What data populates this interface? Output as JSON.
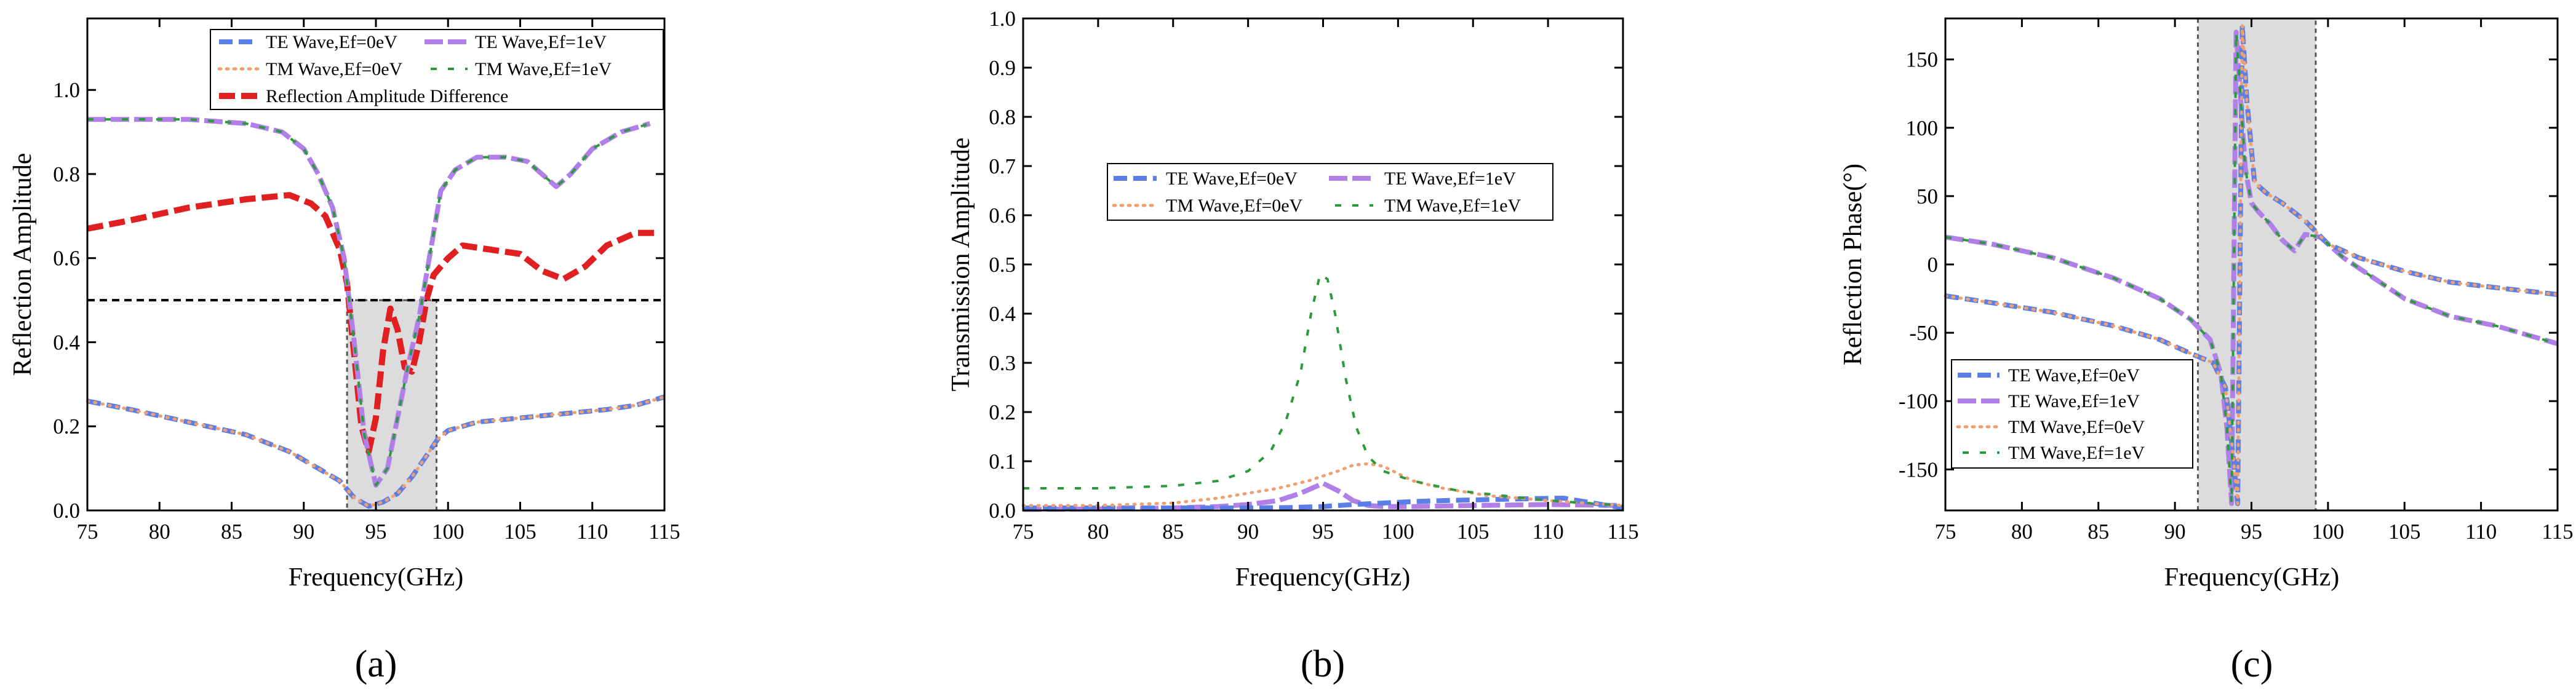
{
  "style": {
    "te0_color": "#5b7fe6",
    "te1_color": "#b080e8",
    "tm0_color": "#f0a070",
    "tm1_color": "#2a9a3a",
    "diff_color": "#e02020",
    "shade_color": "#dcdcdc"
  },
  "chart_data": [
    {
      "type": "line",
      "panel_label": "(a)",
      "xlabel": "Frequency(GHz)",
      "ylabel": "Reflection Amplitude",
      "xlim": [
        75,
        115
      ],
      "ylim": [
        0,
        1.17
      ],
      "xticks": [
        "75",
        "80",
        "85",
        "90",
        "95",
        "100",
        "105",
        "110",
        "115"
      ],
      "xtick_values": [
        75,
        80,
        85,
        90,
        95,
        100,
        105,
        110,
        115
      ],
      "yticks": [
        "0.0",
        "0.2",
        "0.4",
        "0.6",
        "0.8",
        "1.0"
      ],
      "ytick_values": [
        0,
        0.2,
        0.4,
        0.6,
        0.8,
        1.0
      ],
      "hline": 0.5,
      "shaded": {
        "x": [
          93,
          99.2
        ],
        "y": [
          0,
          0.5
        ]
      },
      "legend_position": "top-center",
      "legend_columns": 2,
      "series": [
        {
          "name": "TE Wave,Ef=0eV",
          "style": "te0",
          "x": [
            75,
            78,
            82,
            86,
            89,
            91,
            92.5,
            93.5,
            94.5,
            95.5,
            96.5,
            97.5,
            98.5,
            99.3,
            100,
            102,
            105,
            108,
            111,
            113,
            115
          ],
          "y": [
            0.26,
            0.24,
            0.21,
            0.18,
            0.14,
            0.1,
            0.07,
            0.03,
            0.01,
            0.02,
            0.04,
            0.08,
            0.13,
            0.17,
            0.19,
            0.21,
            0.22,
            0.23,
            0.24,
            0.25,
            0.27
          ]
        },
        {
          "name": "TE Wave,Ef=1eV",
          "style": "te1",
          "x": [
            75,
            78,
            82,
            86,
            88.5,
            90,
            91,
            92,
            92.8,
            93.5,
            94.2,
            95,
            95.8,
            96.5,
            97.2,
            98,
            98.8,
            99.5,
            100.5,
            102,
            104,
            105.5,
            106.5,
            107.5,
            108.5,
            110,
            112,
            114
          ],
          "y": [
            0.93,
            0.93,
            0.93,
            0.92,
            0.9,
            0.86,
            0.8,
            0.72,
            0.6,
            0.4,
            0.18,
            0.06,
            0.1,
            0.22,
            0.34,
            0.46,
            0.62,
            0.76,
            0.81,
            0.84,
            0.84,
            0.83,
            0.8,
            0.77,
            0.8,
            0.86,
            0.9,
            0.92
          ]
        },
        {
          "name": "TM Wave,Ef=0eV",
          "style": "tm0",
          "x": [
            75,
            78,
            82,
            86,
            89,
            91,
            92.5,
            93.5,
            94.5,
            95.5,
            96.5,
            97.5,
            98.5,
            99.3,
            100,
            102,
            105,
            108,
            111,
            113,
            115
          ],
          "y": [
            0.26,
            0.24,
            0.21,
            0.18,
            0.14,
            0.1,
            0.07,
            0.03,
            0.01,
            0.02,
            0.04,
            0.08,
            0.13,
            0.17,
            0.19,
            0.21,
            0.22,
            0.23,
            0.24,
            0.25,
            0.27
          ]
        },
        {
          "name": "TM Wave,Ef=1eV",
          "style": "tm1",
          "x": [
            75,
            78,
            82,
            86,
            88.5,
            90,
            91,
            92,
            92.8,
            93.5,
            94.2,
            95,
            95.8,
            96.5,
            97.2,
            98,
            98.8,
            99.5,
            100.5,
            102,
            104,
            105.5,
            106.5,
            107.5,
            108.5,
            110,
            112,
            114
          ],
          "y": [
            0.93,
            0.93,
            0.93,
            0.92,
            0.9,
            0.86,
            0.8,
            0.72,
            0.6,
            0.4,
            0.18,
            0.06,
            0.1,
            0.22,
            0.34,
            0.46,
            0.62,
            0.76,
            0.81,
            0.84,
            0.84,
            0.83,
            0.8,
            0.77,
            0.8,
            0.86,
            0.9,
            0.92
          ]
        },
        {
          "name": "Reflection Amplitude Difference",
          "style": "diff",
          "x": [
            75,
            78,
            82,
            86,
            89,
            90.5,
            91.5,
            92.5,
            93,
            93.5,
            94,
            94.5,
            95,
            95.5,
            96,
            96.5,
            97,
            97.5,
            98,
            98.5,
            99,
            99.5,
            100,
            101,
            103,
            105,
            106.5,
            108,
            109.5,
            111,
            113,
            114.5
          ],
          "y": [
            0.67,
            0.69,
            0.72,
            0.74,
            0.75,
            0.73,
            0.7,
            0.62,
            0.54,
            0.37,
            0.2,
            0.14,
            0.22,
            0.38,
            0.48,
            0.43,
            0.34,
            0.33,
            0.4,
            0.5,
            0.56,
            0.58,
            0.6,
            0.63,
            0.62,
            0.61,
            0.57,
            0.55,
            0.58,
            0.63,
            0.66,
            0.66
          ]
        }
      ],
      "legend_entries": [
        "TE Wave,Ef=0eV",
        "TE Wave,Ef=1eV",
        "TM Wave,Ef=0eV",
        "TM Wave,Ef=1eV",
        "Reflection Amplitude Difference"
      ]
    },
    {
      "type": "line",
      "panel_label": "(b)",
      "xlabel": "Frequency(GHz)",
      "ylabel": "Transmission Amplitude",
      "xlim": [
        75,
        115
      ],
      "ylim": [
        0,
        1.0
      ],
      "xticks": [
        "75",
        "80",
        "85",
        "90",
        "95",
        "100",
        "105",
        "110",
        "115"
      ],
      "xtick_values": [
        75,
        80,
        85,
        90,
        95,
        100,
        105,
        110,
        115
      ],
      "yticks": [
        "0.0",
        "0.1",
        "0.2",
        "0.3",
        "0.4",
        "0.5",
        "0.6",
        "0.7",
        "0.8",
        "0.9",
        "1.0"
      ],
      "ytick_values": [
        0,
        0.1,
        0.2,
        0.3,
        0.4,
        0.5,
        0.6,
        0.7,
        0.8,
        0.9,
        1.0
      ],
      "legend_position": "center",
      "legend_columns": 2,
      "series": [
        {
          "name": "TE Wave,Ef=0eV",
          "style": "te0",
          "x": [
            75,
            80,
            85,
            90,
            93,
            95,
            97,
            99,
            101,
            103,
            106,
            109,
            111,
            113,
            115
          ],
          "y": [
            0.005,
            0.005,
            0.005,
            0.005,
            0.006,
            0.008,
            0.012,
            0.015,
            0.018,
            0.02,
            0.022,
            0.024,
            0.025,
            0.015,
            0.005
          ]
        },
        {
          "name": "TE Wave,Ef=1eV",
          "style": "te1",
          "x": [
            75,
            80,
            85,
            88,
            90,
            92,
            93.5,
            95,
            96,
            97,
            98,
            99,
            101,
            105,
            110,
            115
          ],
          "y": [
            0.002,
            0.003,
            0.005,
            0.008,
            0.012,
            0.02,
            0.035,
            0.055,
            0.04,
            0.02,
            0.01,
            0.008,
            0.008,
            0.01,
            0.012,
            0.01
          ]
        },
        {
          "name": "TM Wave,Ef=0eV",
          "style": "tm0",
          "x": [
            75,
            80,
            85,
            88,
            90,
            92,
            94,
            96,
            97,
            98,
            99,
            100,
            101,
            103,
            106,
            110,
            115
          ],
          "y": [
            0.01,
            0.01,
            0.015,
            0.025,
            0.035,
            0.045,
            0.06,
            0.08,
            0.092,
            0.095,
            0.09,
            0.075,
            0.06,
            0.045,
            0.03,
            0.02,
            0.01
          ]
        },
        {
          "name": "TM Wave,Ef=1eV",
          "style": "tm1",
          "x": [
            75,
            80,
            85,
            88,
            90,
            91.5,
            92.5,
            93.5,
            94.2,
            94.8,
            95.3,
            95.8,
            96.5,
            97.2,
            98,
            99,
            101,
            104,
            107,
            110,
            115
          ],
          "y": [
            0.045,
            0.045,
            0.05,
            0.06,
            0.08,
            0.12,
            0.18,
            0.28,
            0.4,
            0.48,
            0.47,
            0.4,
            0.27,
            0.17,
            0.11,
            0.08,
            0.06,
            0.04,
            0.03,
            0.02,
            0.01
          ]
        }
      ],
      "legend_entries": [
        "TE Wave,Ef=0eV",
        "TE Wave,Ef=1eV",
        "TM Wave,Ef=0eV",
        "TM Wave,Ef=1eV"
      ]
    },
    {
      "type": "line",
      "panel_label": "(c)",
      "xlabel": "Frequency(GHz)",
      "ylabel": "Reflection Phase(°)",
      "xlim": [
        75,
        115
      ],
      "ylim": [
        -180,
        180
      ],
      "xticks": [
        "75",
        "80",
        "85",
        "90",
        "95",
        "100",
        "105",
        "110",
        "115"
      ],
      "xtick_values": [
        75,
        80,
        85,
        90,
        95,
        100,
        105,
        110,
        115
      ],
      "yticks": [
        "-150",
        "-100",
        "-50",
        "0",
        "50",
        "100",
        "150"
      ],
      "ytick_values": [
        -150,
        -100,
        -50,
        0,
        50,
        100,
        150
      ],
      "shaded": {
        "x": [
          91.5,
          99.2
        ],
        "y": [
          -180,
          180
        ]
      },
      "legend_position": "bottom-left",
      "legend_columns": 1,
      "series": [
        {
          "name": "TE Wave,Ef=0eV",
          "style": "te0",
          "x": [
            75,
            78,
            82,
            86,
            89,
            91,
            92.5,
            93.3,
            93.8,
            94.1,
            94.4,
            94.7,
            95.2,
            96,
            97,
            98.5,
            100,
            102,
            105,
            108,
            111,
            115
          ],
          "y": [
            -23,
            -28,
            -35,
            -45,
            -55,
            -65,
            -72,
            -90,
            -140,
            -175,
            175,
            120,
            60,
            52,
            45,
            32,
            15,
            5,
            -5,
            -13,
            -17,
            -22
          ]
        },
        {
          "name": "TE Wave,Ef=1eV",
          "style": "te1",
          "x": [
            75,
            78,
            82,
            86,
            89,
            91,
            92.3,
            93,
            93.4,
            93.7,
            94,
            94.3,
            94.6,
            95,
            95.5,
            96.2,
            97,
            97.8,
            98.5,
            99.5,
            101,
            103,
            105,
            108,
            111,
            115
          ],
          "y": [
            20,
            15,
            5,
            -10,
            -25,
            -40,
            -55,
            -80,
            -120,
            -175,
            170,
            120,
            70,
            45,
            38,
            30,
            18,
            10,
            22,
            20,
            5,
            -10,
            -25,
            -38,
            -45,
            -58
          ]
        },
        {
          "name": "TM Wave,Ef=0eV",
          "style": "tm0",
          "x": [
            75,
            78,
            82,
            86,
            89,
            91,
            92.5,
            93.3,
            93.8,
            94.1,
            94.4,
            94.7,
            95.2,
            96,
            97,
            98.5,
            100,
            102,
            105,
            108,
            111,
            115
          ],
          "y": [
            -23,
            -28,
            -35,
            -45,
            -55,
            -65,
            -72,
            -90,
            -140,
            -175,
            175,
            120,
            60,
            52,
            45,
            32,
            15,
            5,
            -5,
            -13,
            -17,
            -22
          ]
        },
        {
          "name": "TM Wave,Ef=1eV",
          "style": "tm1",
          "x": [
            75,
            78,
            82,
            86,
            89,
            91,
            92.3,
            93,
            93.4,
            93.7,
            94,
            94.3,
            94.6,
            95,
            95.5,
            96.2,
            97,
            97.8,
            98.5,
            99.5,
            101,
            103,
            105,
            108,
            111,
            115
          ],
          "y": [
            20,
            15,
            5,
            -10,
            -25,
            -40,
            -55,
            -80,
            -120,
            -175,
            170,
            120,
            70,
            45,
            38,
            30,
            18,
            10,
            22,
            20,
            5,
            -10,
            -25,
            -38,
            -45,
            -58
          ]
        }
      ],
      "legend_entries": [
        "TE Wave,Ef=0eV",
        "TE Wave,Ef=1eV",
        "TM Wave,Ef=0eV",
        "TM Wave,Ef=1eV"
      ]
    }
  ]
}
